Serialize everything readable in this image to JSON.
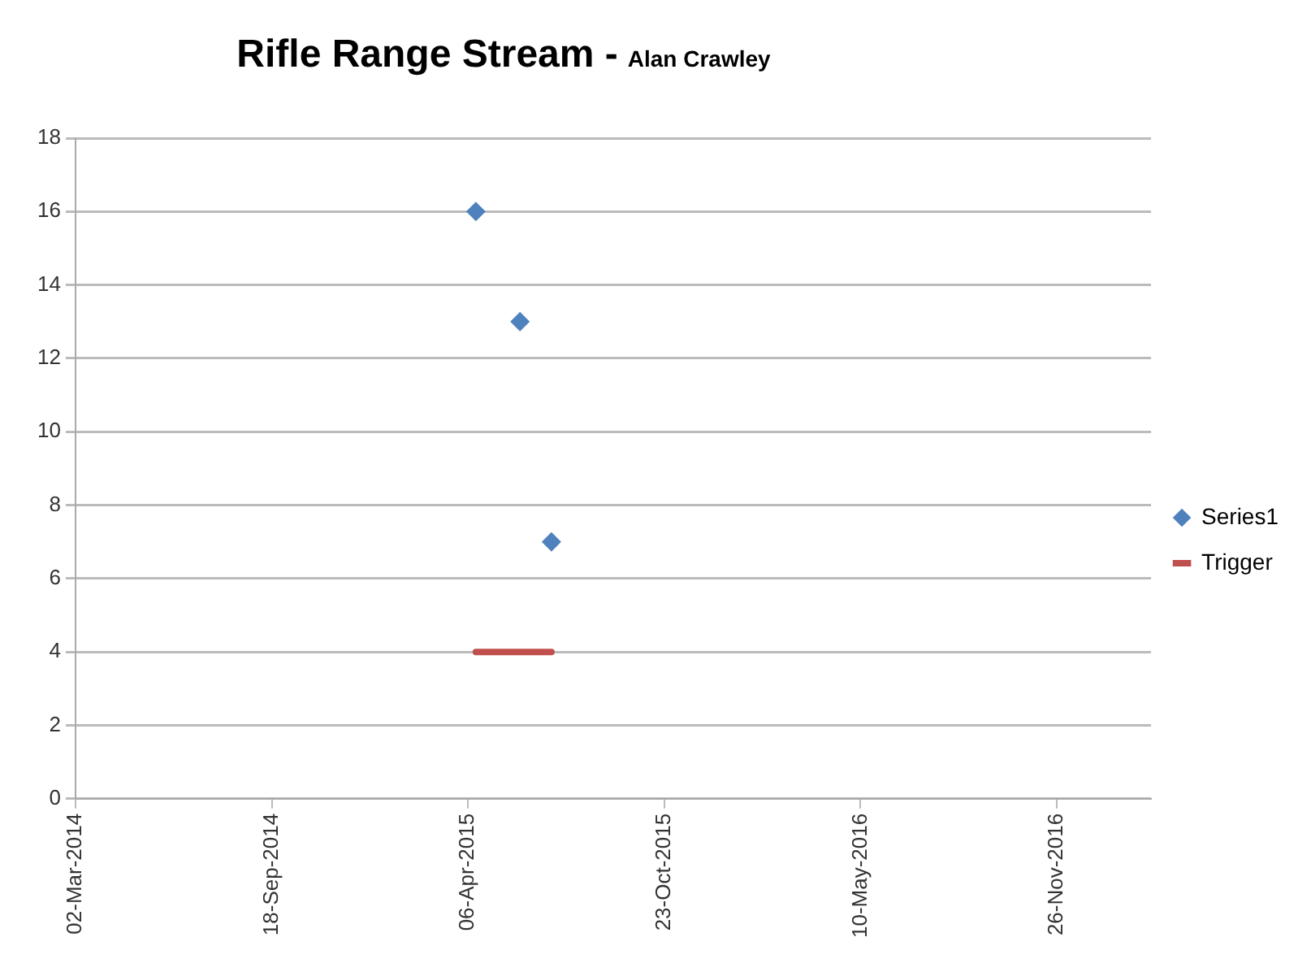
{
  "chart_data": {
    "type": "scatter",
    "title": "Rifle Range Stream -",
    "subtitle": "Alan Crawley",
    "xlim": [
      "2014-03-02",
      "2017-03-02"
    ],
    "xticks": [
      {
        "value": "2014-03-02",
        "label": "02-Mar-2014"
      },
      {
        "value": "2014-09-18",
        "label": "18-Sep-2014"
      },
      {
        "value": "2015-04-06",
        "label": "06-Apr-2015"
      },
      {
        "value": "2015-10-23",
        "label": "23-Oct-2015"
      },
      {
        "value": "2016-05-10",
        "label": "10-May-2016"
      },
      {
        "value": "2016-11-26",
        "label": "26-Nov-2016"
      }
    ],
    "ylim": [
      0,
      18
    ],
    "yticks": [
      0,
      2,
      4,
      6,
      8,
      10,
      12,
      14,
      16,
      18
    ],
    "grid": "y",
    "legend": "right",
    "marker": "diamond",
    "series": [
      {
        "name": "Series1",
        "color": "#4f81bd",
        "x": [
          "2015-04-14",
          "2015-05-29",
          "2015-06-30"
        ],
        "values": [
          16,
          13,
          7
        ]
      },
      {
        "name": "Trigger",
        "type": "line",
        "color": "#c0504d",
        "marker": "none",
        "x": [
          "2015-04-14",
          "2015-06-30"
        ],
        "values": [
          4,
          4
        ]
      }
    ]
  }
}
